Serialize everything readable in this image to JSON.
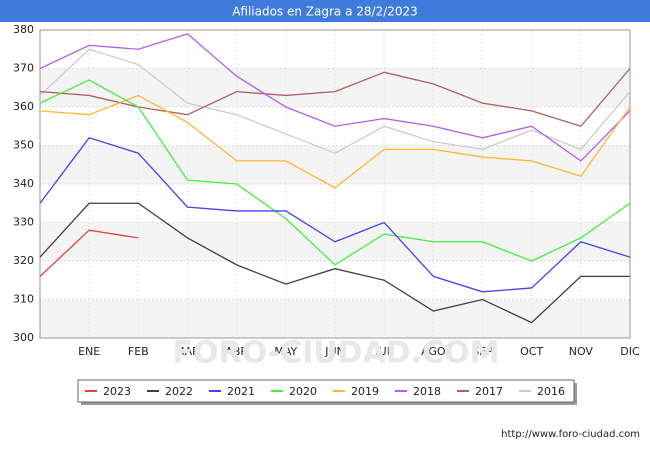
{
  "chart_data": {
    "type": "line",
    "title": "Afiliados en Zagra a 28/2/2023",
    "categories": [
      null,
      "ENE",
      "FEB",
      "MAR",
      "ABR",
      "MAY",
      "JUN",
      "JUL",
      "AGO",
      "SEP",
      "OCT",
      "NOV",
      "DIC"
    ],
    "series": [
      {
        "name": "2023",
        "color": "#e84040",
        "values": [
          316,
          328,
          326,
          null,
          null,
          null,
          null,
          null,
          null,
          null,
          null,
          null,
          null
        ]
      },
      {
        "name": "2022",
        "color": "#404040",
        "values": [
          321,
          335,
          335,
          326,
          319,
          314,
          318,
          315,
          307,
          310,
          304,
          316,
          316
        ]
      },
      {
        "name": "2021",
        "color": "#4444ee",
        "values": [
          335,
          352,
          348,
          334,
          333,
          333,
          325,
          330,
          316,
          312,
          313,
          325,
          321
        ]
      },
      {
        "name": "2020",
        "color": "#44ee44",
        "values": [
          361,
          367,
          360,
          341,
          340,
          331,
          319,
          327,
          325,
          325,
          320,
          326,
          335
        ]
      },
      {
        "name": "2019",
        "color": "#ffb733",
        "values": [
          359,
          358,
          363,
          356,
          346,
          346,
          339,
          349,
          349,
          347,
          346,
          342,
          360
        ]
      },
      {
        "name": "2018",
        "color": "#b25fef",
        "values": [
          370,
          376,
          375,
          379,
          368,
          360,
          355,
          357,
          355,
          352,
          355,
          346,
          359
        ]
      },
      {
        "name": "2017",
        "color": "#b06060",
        "values": [
          364,
          363,
          360,
          358,
          364,
          363,
          364,
          369,
          366,
          361,
          359,
          355,
          370
        ]
      },
      {
        "name": "2016",
        "color": "#cccccc",
        "values": [
          363,
          375,
          371,
          361,
          358,
          353,
          348,
          355,
          351,
          349,
          354,
          349,
          364
        ]
      }
    ],
    "ylim": [
      300,
      380
    ],
    "yticks": [
      300,
      310,
      320,
      330,
      340,
      350,
      360,
      370,
      380
    ],
    "grid": true,
    "watermark": "FORO-CIUDAD.COM",
    "source": "http://www.foro-ciudad.com"
  }
}
